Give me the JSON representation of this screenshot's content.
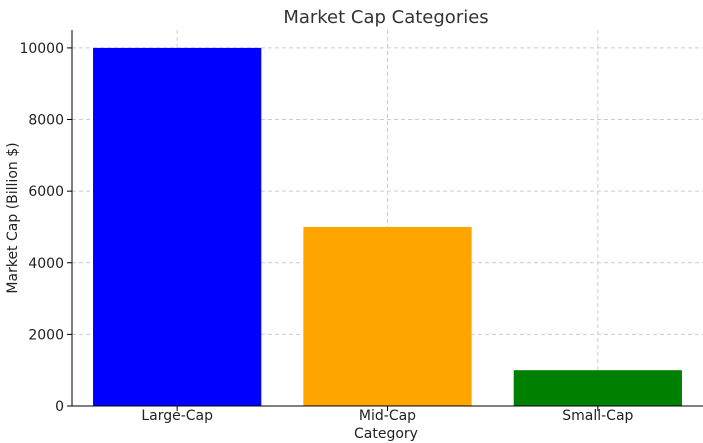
{
  "chart_data": {
    "type": "bar",
    "title": "Market Cap Categories",
    "xlabel": "Category",
    "ylabel": "Market Cap (Billion $)",
    "categories": [
      "Large-Cap",
      "Mid-Cap",
      "Small-Cap"
    ],
    "values": [
      10000,
      5000,
      1000
    ],
    "colors": [
      "#0000ff",
      "#ffa500",
      "#008000"
    ],
    "ylim": [
      0,
      10500
    ],
    "yticks": [
      0,
      2000,
      4000,
      6000,
      8000,
      10000
    ],
    "grid": true
  }
}
